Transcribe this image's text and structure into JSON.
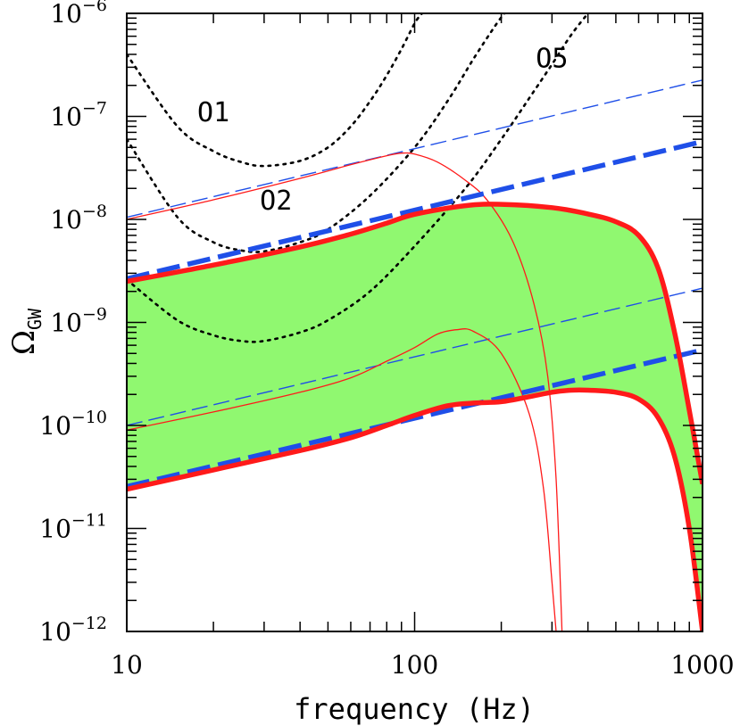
{
  "chart_data": {
    "type": "line",
    "xscale": "log",
    "yscale": "log",
    "xlim": [
      10,
      1000
    ],
    "ylim": [
      1e-12,
      1e-06
    ],
    "xlabel": "frequency (Hz)",
    "ylabel": {
      "base": "Ω",
      "sub": "GW"
    },
    "x_ticks": [
      {
        "value": 10,
        "label": "10"
      },
      {
        "value": 100,
        "label": "100"
      },
      {
        "value": 1000,
        "label": "1000"
      }
    ],
    "y_ticks": [
      {
        "value": 1e-12,
        "mant": "10",
        "exp": "−12"
      },
      {
        "value": 1e-11,
        "mant": "10",
        "exp": "−11"
      },
      {
        "value": 1e-10,
        "mant": "10",
        "exp": "−10"
      },
      {
        "value": 1e-09,
        "mant": "10",
        "exp": "−9"
      },
      {
        "value": 1e-08,
        "mant": "10",
        "exp": "−8"
      },
      {
        "value": 1e-07,
        "mant": "10",
        "exp": "−7"
      },
      {
        "value": 1e-06,
        "mant": "10",
        "exp": "−6"
      }
    ],
    "band": {
      "name": "allowed region",
      "color": "#90f870",
      "upper": [
        [
          10,
          2.5e-09
        ],
        [
          20,
          3.6e-09
        ],
        [
          40,
          5.4e-09
        ],
        [
          60,
          7.2e-09
        ],
        [
          80,
          9.2e-09
        ],
        [
          100,
          1.12e-08
        ],
        [
          150,
          1.36e-08
        ],
        [
          200,
          1.4e-08
        ],
        [
          300,
          1.3e-08
        ],
        [
          400,
          1.13e-08
        ],
        [
          500,
          9.5e-09
        ],
        [
          600,
          7e-09
        ],
        [
          700,
          3.4e-09
        ],
        [
          800,
          8e-10
        ],
        [
          900,
          1.4e-10
        ],
        [
          1000,
          2.7e-11
        ]
      ],
      "lower": [
        [
          10,
          2.4e-11
        ],
        [
          20,
          3.7e-11
        ],
        [
          40,
          5.7e-11
        ],
        [
          60,
          7.6e-11
        ],
        [
          80,
          1e-10
        ],
        [
          100,
          1.25e-10
        ],
        [
          130,
          1.55e-10
        ],
        [
          160,
          1.65e-10
        ],
        [
          200,
          1.7e-10
        ],
        [
          250,
          1.9e-10
        ],
        [
          300,
          2.1e-10
        ],
        [
          350,
          2.2e-10
        ],
        [
          400,
          2.2e-10
        ],
        [
          500,
          2.1e-10
        ],
        [
          600,
          1.8e-10
        ],
        [
          700,
          1.2e-10
        ],
        [
          800,
          5e-11
        ],
        [
          900,
          1e-11
        ],
        [
          1000,
          1e-12
        ]
      ]
    },
    "series": [
      {
        "name": "O1",
        "label": "O1",
        "label_at": [
          20,
          9e-08
        ],
        "style": "dotted",
        "color": "#000000",
        "width": 2.6,
        "points": [
          [
            10,
            4e-07
          ],
          [
            15,
            8e-08
          ],
          [
            20,
            4.6e-08
          ],
          [
            25,
            3.6e-08
          ],
          [
            30,
            3.3e-08
          ],
          [
            40,
            3.7e-08
          ],
          [
            50,
            5e-08
          ],
          [
            60,
            8e-08
          ],
          [
            70,
            1.4e-07
          ],
          [
            80,
            2.5e-07
          ],
          [
            90,
            4.5e-07
          ],
          [
            100,
            8e-07
          ],
          [
            106,
            1e-06
          ]
        ]
      },
      {
        "name": "O2",
        "label": "O2",
        "label_at": [
          33,
          1.25e-08
        ],
        "style": "dotted",
        "color": "#000000",
        "width": 2.6,
        "points": [
          [
            10,
            6e-08
          ],
          [
            15,
            1.05e-08
          ],
          [
            20,
            6e-09
          ],
          [
            25,
            5e-09
          ],
          [
            30,
            4.9e-09
          ],
          [
            40,
            6e-09
          ],
          [
            50,
            8e-09
          ],
          [
            70,
            1.7e-08
          ],
          [
            100,
            5e-08
          ],
          [
            130,
            1.4e-07
          ],
          [
            160,
            3.6e-07
          ],
          [
            190,
            7.5e-07
          ],
          [
            205,
            1e-06
          ]
        ]
      },
      {
        "name": "O5",
        "label": "O5",
        "label_at": [
          300,
          3e-07
        ],
        "style": "dotted",
        "color": "#000000",
        "width": 2.6,
        "points": [
          [
            10,
            2.6e-09
          ],
          [
            15,
            1.05e-09
          ],
          [
            20,
            7.5e-10
          ],
          [
            25,
            6.6e-10
          ],
          [
            30,
            6.6e-10
          ],
          [
            40,
            8e-10
          ],
          [
            50,
            1.05e-09
          ],
          [
            70,
            2e-09
          ],
          [
            100,
            5.5e-09
          ],
          [
            150,
            2e-08
          ],
          [
            200,
            6e-08
          ],
          [
            250,
            1.5e-07
          ],
          [
            300,
            3.2e-07
          ],
          [
            350,
            6.2e-07
          ],
          [
            400,
            1e-06
          ]
        ]
      },
      {
        "name": "power-law upper (thin)",
        "style": "dashed",
        "color": "#1f4fe8",
        "width": 1.4,
        "points": [
          [
            10,
            1.05e-08
          ],
          [
            1000,
            2.25e-07
          ]
        ]
      },
      {
        "name": "power-law lower (thin)",
        "style": "dashed",
        "color": "#1f4fe8",
        "width": 1.4,
        "points": [
          [
            10,
            1e-10
          ],
          [
            1000,
            2.15e-09
          ]
        ]
      },
      {
        "name": "power-law upper (thick)",
        "style": "dashed-thick",
        "color": "#1f4fe8",
        "width": 5.5,
        "points": [
          [
            10,
            2.65e-09
          ],
          [
            1000,
            5.7e-08
          ]
        ]
      },
      {
        "name": "power-law lower (thick)",
        "style": "dashed-thick",
        "color": "#1f4fe8",
        "width": 5.5,
        "points": [
          [
            10,
            2.55e-11
          ],
          [
            1000,
            5.4e-10
          ]
        ]
      },
      {
        "name": "spectrum upper (thin)",
        "style": "solid",
        "color": "#ff1a1a",
        "width": 1.3,
        "points": [
          [
            10,
            1e-08
          ],
          [
            20,
            1.55e-08
          ],
          [
            40,
            2.5e-08
          ],
          [
            60,
            3.4e-08
          ],
          [
            80,
            4.15e-08
          ],
          [
            90,
            4.4e-08
          ],
          [
            100,
            4.3e-08
          ],
          [
            120,
            3.6e-08
          ],
          [
            150,
            2.4e-08
          ],
          [
            180,
            1.5e-08
          ],
          [
            220,
            6e-09
          ],
          [
            260,
            1.5e-09
          ],
          [
            290,
            3e-10
          ],
          [
            310,
            3e-11
          ],
          [
            325,
            1e-12
          ]
        ]
      },
      {
        "name": "spectrum lower (thin)",
        "style": "solid",
        "color": "#ff1a1a",
        "width": 1.3,
        "points": [
          [
            10,
            9e-11
          ],
          [
            20,
            1.35e-10
          ],
          [
            40,
            2.1e-10
          ],
          [
            60,
            2.9e-10
          ],
          [
            80,
            4.2e-10
          ],
          [
            100,
            5.7e-10
          ],
          [
            120,
            7.7e-10
          ],
          [
            140,
            8.5e-10
          ],
          [
            160,
            8.2e-10
          ],
          [
            200,
            5e-10
          ],
          [
            250,
            1.3e-10
          ],
          [
            280,
            2.5e-11
          ],
          [
            300,
            3e-12
          ],
          [
            310,
            1e-12
          ]
        ]
      },
      {
        "name": "band upper edge",
        "style": "solid-thick",
        "color": "#ff1a1a",
        "width": 5.5,
        "points": [
          [
            10,
            2.5e-09
          ],
          [
            20,
            3.6e-09
          ],
          [
            40,
            5.4e-09
          ],
          [
            60,
            7.2e-09
          ],
          [
            80,
            9.2e-09
          ],
          [
            100,
            1.12e-08
          ],
          [
            150,
            1.36e-08
          ],
          [
            200,
            1.4e-08
          ],
          [
            300,
            1.3e-08
          ],
          [
            400,
            1.13e-08
          ],
          [
            500,
            9.5e-09
          ],
          [
            600,
            7e-09
          ],
          [
            700,
            3.4e-09
          ],
          [
            800,
            8e-10
          ],
          [
            900,
            1.4e-10
          ],
          [
            1000,
            2.7e-11
          ]
        ]
      },
      {
        "name": "band lower edge",
        "style": "solid-thick",
        "color": "#ff1a1a",
        "width": 5.5,
        "points": [
          [
            10,
            2.4e-11
          ],
          [
            20,
            3.7e-11
          ],
          [
            40,
            5.7e-11
          ],
          [
            60,
            7.6e-11
          ],
          [
            80,
            1e-10
          ],
          [
            100,
            1.25e-10
          ],
          [
            130,
            1.55e-10
          ],
          [
            160,
            1.65e-10
          ],
          [
            200,
            1.7e-10
          ],
          [
            250,
            1.9e-10
          ],
          [
            300,
            2.1e-10
          ],
          [
            350,
            2.2e-10
          ],
          [
            400,
            2.2e-10
          ],
          [
            500,
            2.1e-10
          ],
          [
            600,
            1.8e-10
          ],
          [
            700,
            1.2e-10
          ],
          [
            800,
            5e-11
          ],
          [
            900,
            1e-11
          ],
          [
            1000,
            1e-12
          ]
        ]
      }
    ]
  }
}
